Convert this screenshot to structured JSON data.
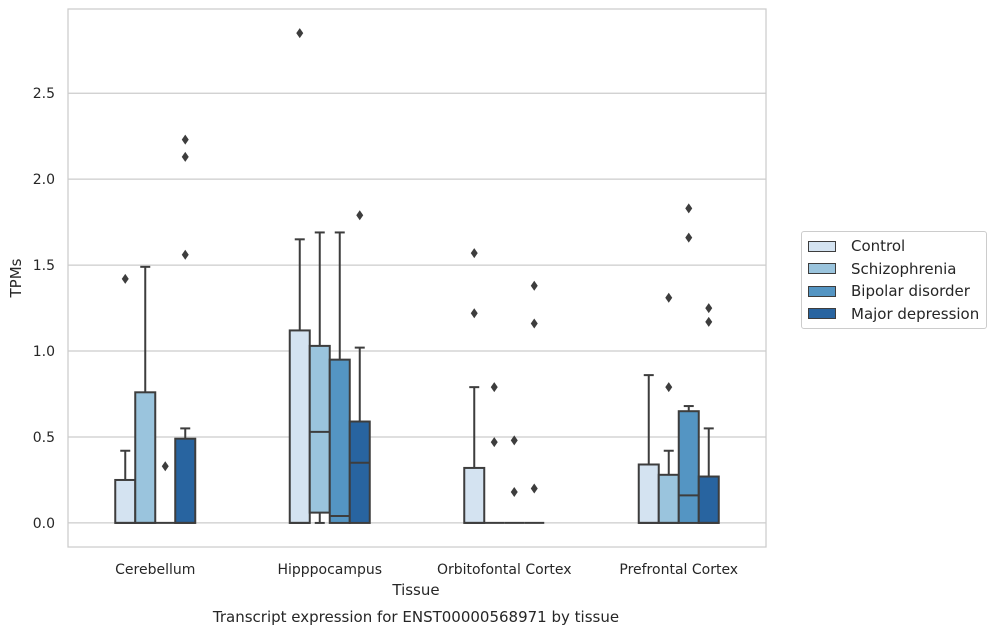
{
  "chart_data": {
    "type": "boxplot",
    "title": "",
    "caption": "Transcript expression for ENST00000568971 by tissue",
    "xlabel": "Tissue",
    "ylabel": "TPMs",
    "ylim": [
      -0.14,
      2.99
    ],
    "yticks": [
      "0.0",
      "0.5",
      "1.0",
      "1.5",
      "2.0",
      "2.5"
    ],
    "categories": [
      "Cerebellum",
      "Hipppocampus",
      "Orbitofontal Cortex",
      "Prefrontal Cortex"
    ],
    "grid": "horizontal",
    "legend_position": "right",
    "series": [
      {
        "name": "Control",
        "color": "#d4e3f1",
        "boxes": [
          {
            "q1": 0,
            "median": 0,
            "q3": 0.25,
            "whislo": 0,
            "whishi": 0.42,
            "fliers": [
              1.42
            ]
          },
          {
            "q1": 0,
            "median": 0,
            "q3": 1.12,
            "whislo": 0,
            "whishi": 1.65,
            "fliers": [
              2.85
            ]
          },
          {
            "q1": 0,
            "median": 0,
            "q3": 0.32,
            "whislo": 0,
            "whishi": 0.79,
            "fliers": [
              1.57,
              1.22
            ]
          },
          {
            "q1": 0,
            "median": 0,
            "q3": 0.34,
            "whislo": 0,
            "whishi": 0.86,
            "fliers": []
          }
        ]
      },
      {
        "name": "Schizophrenia",
        "color": "#9ac4dd",
        "boxes": [
          {
            "q1": 0,
            "median": 0,
            "q3": 0.76,
            "whislo": 0,
            "whishi": 1.49,
            "fliers": []
          },
          {
            "q1": 0.06,
            "median": 0.53,
            "q3": 1.03,
            "whislo": 0,
            "whishi": 1.69,
            "fliers": []
          },
          {
            "q1": 0,
            "median": 0,
            "q3": 0,
            "whislo": 0,
            "whishi": 0,
            "fliers": [
              0.79,
              0.47
            ]
          },
          {
            "q1": 0,
            "median": 0,
            "q3": 0.28,
            "whislo": 0,
            "whishi": 0.42,
            "fliers": [
              1.31,
              0.79
            ]
          }
        ]
      },
      {
        "name": "Bipolar disorder",
        "color": "#5495c3",
        "boxes": [
          {
            "q1": 0,
            "median": 0,
            "q3": 0,
            "whislo": 0,
            "whishi": 0,
            "fliers": [
              0.33
            ]
          },
          {
            "q1": 0,
            "median": 0.04,
            "q3": 0.95,
            "whislo": 0,
            "whishi": 1.69,
            "fliers": []
          },
          {
            "q1": 0,
            "median": 0,
            "q3": 0,
            "whislo": 0,
            "whishi": 0,
            "fliers": [
              0.48,
              0.18
            ]
          },
          {
            "q1": 0,
            "median": 0.16,
            "q3": 0.65,
            "whislo": 0,
            "whishi": 0.68,
            "fliers": [
              1.83,
              1.66
            ]
          }
        ]
      },
      {
        "name": "Major depression",
        "color": "#2864a0",
        "boxes": [
          {
            "q1": 0,
            "median": 0,
            "q3": 0.49,
            "whislo": 0,
            "whishi": 0.55,
            "fliers": [
              2.23,
              2.13,
              1.56
            ]
          },
          {
            "q1": 0,
            "median": 0.35,
            "q3": 0.59,
            "whislo": 0,
            "whishi": 1.02,
            "fliers": [
              1.79
            ]
          },
          {
            "q1": 0,
            "median": 0,
            "q3": 0,
            "whislo": 0,
            "whishi": 0,
            "fliers": [
              1.38,
              1.16,
              0.2
            ]
          },
          {
            "q1": 0,
            "median": 0,
            "q3": 0.27,
            "whislo": 0,
            "whishi": 0.55,
            "fliers": [
              1.25,
              1.17
            ]
          }
        ]
      }
    ]
  }
}
